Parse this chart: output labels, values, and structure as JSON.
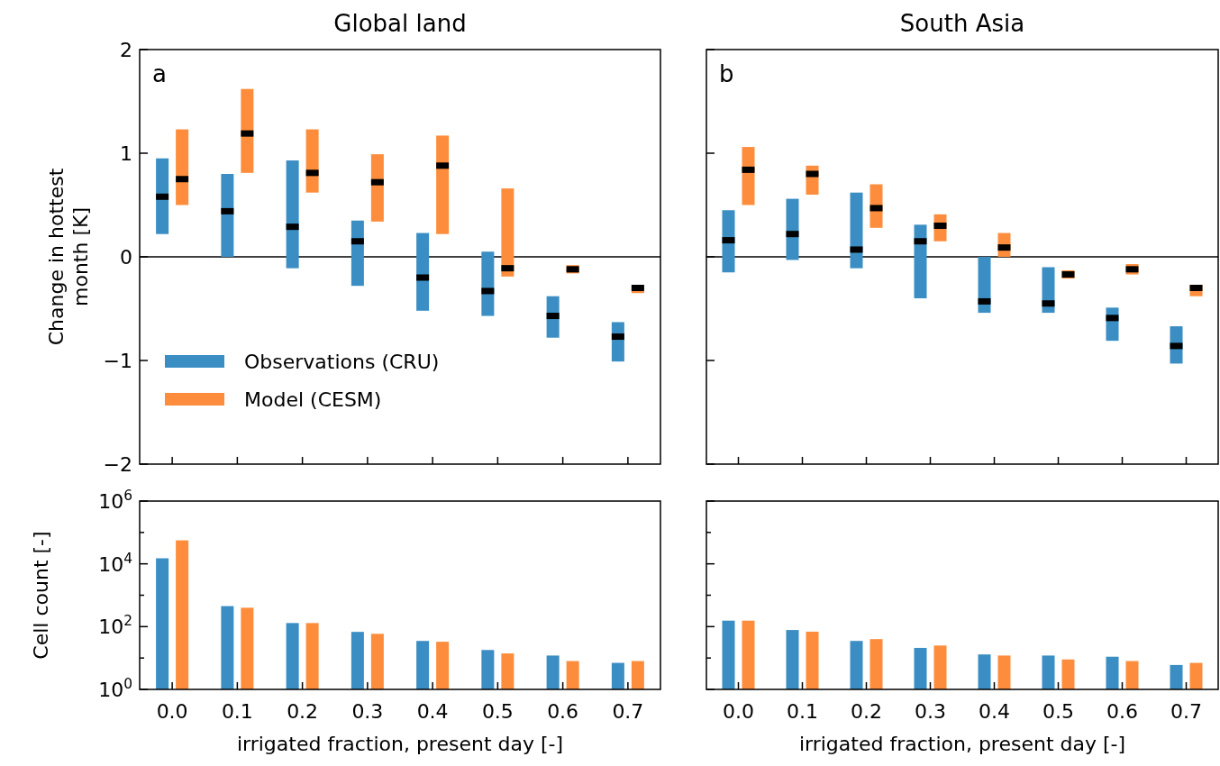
{
  "chart_data": [
    {
      "type": "box",
      "title": "Global land",
      "ylabel": "Change in hottest month [K]",
      "categories": [
        "0.0",
        "0.1",
        "0.2",
        "0.3",
        "0.4",
        "0.5",
        "0.6",
        "0.7"
      ],
      "tick_labels": "y",
      "ylim": [
        -2,
        2
      ],
      "yticks": [
        {
          "value": -2,
          "label": "−2"
        },
        {
          "value": -1,
          "label": "−1"
        },
        0,
        1,
        2
      ],
      "legend": "bottom left",
      "ref_lines": [
        {
          "axis": "y",
          "value": 0,
          "color": "#000000"
        }
      ],
      "annotations": [
        "a"
      ],
      "series": [
        {
          "name": "Observations (CRU)",
          "color": "#3a8ec4",
          "boxes": [
            {
              "low": 0.22,
              "q1": 0.22,
              "median": 0.58,
              "q3": 0.95,
              "high": 0.95
            },
            {
              "low": 0.0,
              "q1": 0.0,
              "median": 0.44,
              "q3": 0.8,
              "high": 0.8
            },
            {
              "low": -0.11,
              "q1": -0.11,
              "median": 0.29,
              "q3": 0.93,
              "high": 0.93
            },
            {
              "low": -0.28,
              "q1": -0.28,
              "median": 0.15,
              "q3": 0.35,
              "high": 0.35
            },
            {
              "low": -0.52,
              "q1": -0.52,
              "median": -0.2,
              "q3": 0.23,
              "high": 0.23
            },
            {
              "low": -0.57,
              "q1": -0.57,
              "median": -0.33,
              "q3": 0.05,
              "high": 0.05
            },
            {
              "low": -0.78,
              "q1": -0.78,
              "median": -0.57,
              "q3": -0.38,
              "high": -0.38
            },
            {
              "low": -1.01,
              "q1": -1.01,
              "median": -0.77,
              "q3": -0.63,
              "high": -0.63
            }
          ]
        },
        {
          "name": "Model (CESM)",
          "color": "#fd8d3c",
          "boxes": [
            {
              "low": 0.5,
              "q1": 0.5,
              "median": 0.75,
              "q3": 1.23,
              "high": 1.23
            },
            {
              "low": 0.81,
              "q1": 0.81,
              "median": 1.19,
              "q3": 1.62,
              "high": 1.62
            },
            {
              "low": 0.62,
              "q1": 0.62,
              "median": 0.81,
              "q3": 1.23,
              "high": 1.23
            },
            {
              "low": 0.34,
              "q1": 0.34,
              "median": 0.72,
              "q3": 0.99,
              "high": 0.99
            },
            {
              "low": 0.22,
              "q1": 0.22,
              "median": 0.88,
              "q3": 1.17,
              "high": 1.17
            },
            {
              "low": -0.19,
              "q1": -0.19,
              "median": -0.11,
              "q3": 0.66,
              "high": 0.66
            },
            {
              "low": -0.16,
              "q1": -0.16,
              "median": -0.12,
              "q3": -0.08,
              "high": -0.08
            },
            {
              "low": -0.35,
              "q1": -0.35,
              "median": -0.3,
              "q3": -0.27,
              "high": -0.27
            }
          ]
        }
      ]
    },
    {
      "type": "box",
      "title": "South Asia",
      "categories": [
        "0.0",
        "0.1",
        "0.2",
        "0.3",
        "0.4",
        "0.5",
        "0.6",
        "0.7"
      ],
      "tick_labels": false,
      "ylim": [
        -2,
        2
      ],
      "yticks": [
        -2,
        -1,
        0,
        1,
        2
      ],
      "ref_lines": [
        {
          "axis": "y",
          "value": 0,
          "color": "#000000"
        }
      ],
      "annotations": [
        "b"
      ],
      "series": [
        {
          "color": "#3a8ec4",
          "boxes": [
            {
              "low": -0.15,
              "q1": -0.15,
              "median": 0.16,
              "q3": 0.45,
              "high": 0.45
            },
            {
              "low": -0.03,
              "q1": -0.03,
              "median": 0.22,
              "q3": 0.56,
              "high": 0.56
            },
            {
              "low": -0.11,
              "q1": -0.11,
              "median": 0.07,
              "q3": 0.62,
              "high": 0.62
            },
            {
              "low": -0.4,
              "q1": -0.4,
              "median": 0.15,
              "q3": 0.31,
              "high": 0.31
            },
            {
              "low": -0.54,
              "q1": -0.54,
              "median": -0.43,
              "q3": 0.0,
              "high": 0.0
            },
            {
              "low": -0.54,
              "q1": -0.54,
              "median": -0.45,
              "q3": -0.1,
              "high": -0.1
            },
            {
              "low": -0.81,
              "q1": -0.81,
              "median": -0.59,
              "q3": -0.49,
              "high": -0.49
            },
            {
              "low": -1.03,
              "q1": -1.03,
              "median": -0.86,
              "q3": -0.67,
              "high": -0.67
            }
          ]
        },
        {
          "color": "#fd8d3c",
          "boxes": [
            {
              "low": 0.5,
              "q1": 0.5,
              "median": 0.84,
              "q3": 1.06,
              "high": 1.06
            },
            {
              "low": 0.6,
              "q1": 0.6,
              "median": 0.8,
              "q3": 0.88,
              "high": 0.88
            },
            {
              "low": 0.28,
              "q1": 0.28,
              "median": 0.47,
              "q3": 0.7,
              "high": 0.7
            },
            {
              "low": 0.15,
              "q1": 0.15,
              "median": 0.3,
              "q3": 0.41,
              "high": 0.41
            },
            {
              "low": 0.0,
              "q1": 0.0,
              "median": 0.09,
              "q3": 0.23,
              "high": 0.23
            },
            {
              "low": -0.21,
              "q1": -0.21,
              "median": -0.17,
              "q3": -0.13,
              "high": -0.13
            },
            {
              "low": -0.17,
              "q1": -0.17,
              "median": -0.12,
              "q3": -0.07,
              "high": -0.07
            },
            {
              "low": -0.38,
              "q1": -0.38,
              "median": -0.3,
              "q3": -0.27,
              "high": -0.27
            }
          ]
        }
      ]
    },
    {
      "type": "bar",
      "xlabel": "irrigated fraction, present day [-]",
      "ylabel": "Cell count [-]",
      "categories": [
        "0.0",
        "0.1",
        "0.2",
        "0.3",
        "0.4",
        "0.5",
        "0.6",
        "0.7"
      ],
      "log": "y",
      "ylim": [
        1,
        1000000
      ],
      "yticks": [
        {
          "value": 1,
          "label": "10$^{0}$"
        },
        {
          "value": 10,
          "label": null
        },
        {
          "value": 100,
          "label": "10$^{2}$"
        },
        {
          "value": 1000,
          "label": null
        },
        {
          "value": 10000,
          "label": "10$^{4}$"
        },
        {
          "value": 100000,
          "label": null
        },
        {
          "value": 1000000,
          "label": "10$^{6}$"
        }
      ],
      "series": [
        {
          "color": "#3a8ec4",
          "values": [
            15000,
            450,
            130,
            68,
            35,
            18,
            12,
            7
          ]
        },
        {
          "color": "#fd8d3c",
          "values": [
            56000,
            400,
            130,
            59,
            33,
            14,
            8,
            8
          ]
        }
      ]
    },
    {
      "type": "bar",
      "xlabel": "irrigated fraction, present day [-]",
      "categories": [
        "0.0",
        "0.1",
        "0.2",
        "0.3",
        "0.4",
        "0.5",
        "0.6",
        "0.7"
      ],
      "tick_labels": "x",
      "log": "y",
      "ylim": [
        1,
        1000000
      ],
      "yticks": [
        1,
        {
          "value": 10,
          "label": null
        },
        100,
        {
          "value": 1000,
          "label": null
        },
        10000,
        {
          "value": 100000,
          "label": null
        },
        1000000
      ],
      "series": [
        {
          "color": "#3a8ec4",
          "values": [
            155,
            78,
            35,
            21,
            13,
            12,
            11,
            6
          ]
        },
        {
          "color": "#fd8d3c",
          "values": [
            155,
            69,
            40,
            25,
            12,
            9,
            8,
            7
          ]
        }
      ]
    }
  ]
}
